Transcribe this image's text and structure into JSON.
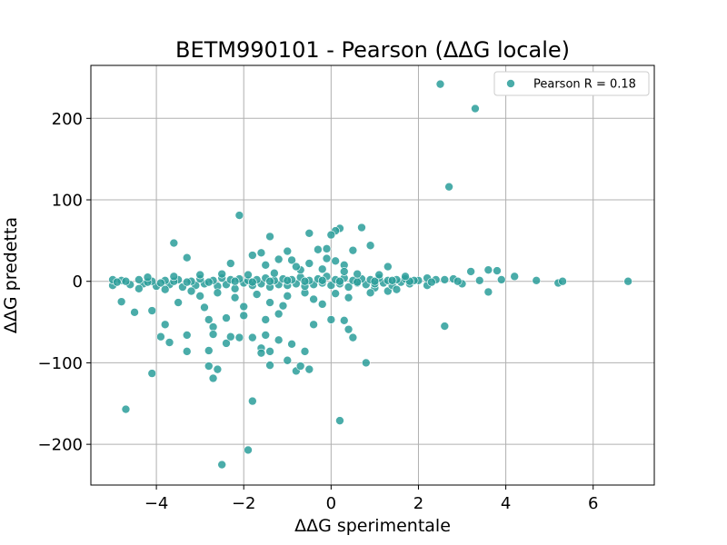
{
  "chart_data": {
    "type": "scatter",
    "title": "BETM990101 - Pearson (ΔΔG locale)",
    "xlabel": "ΔΔG sperimentale",
    "ylabel": "ΔΔG predetta",
    "xlim": [
      -5.5,
      7.4
    ],
    "ylim": [
      -250,
      265
    ],
    "xticks": [
      -4,
      -2,
      0,
      2,
      4,
      6
    ],
    "yticks": [
      -200,
      -100,
      0,
      100,
      200
    ],
    "grid": true,
    "legend": {
      "placement": "top-right",
      "label": "Pearson R = 0.18"
    },
    "marker_color": "#2a9d9a",
    "series": [
      {
        "name": "Pearson R = 0.18",
        "points": [
          [
            2.5,
            242
          ],
          [
            3.3,
            212
          ],
          [
            2.7,
            116
          ],
          [
            -2.1,
            81
          ],
          [
            0.7,
            66
          ],
          [
            0.2,
            65
          ],
          [
            0.1,
            62
          ],
          [
            -0.5,
            59
          ],
          [
            0.0,
            57
          ],
          [
            -1.4,
            55
          ],
          [
            -3.6,
            47
          ],
          [
            0.9,
            44
          ],
          [
            -0.1,
            40
          ],
          [
            0.5,
            38
          ],
          [
            -0.3,
            39
          ],
          [
            -1.0,
            37
          ],
          [
            -3.3,
            29
          ],
          [
            -1.8,
            32
          ],
          [
            -1.6,
            35
          ],
          [
            -1.2,
            27
          ],
          [
            -1.5,
            20
          ],
          [
            -2.3,
            22
          ],
          [
            -0.9,
            26
          ],
          [
            0.3,
            20
          ],
          [
            1.3,
            18
          ],
          [
            3.6,
            14
          ],
          [
            3.8,
            13
          ],
          [
            3.2,
            12
          ],
          [
            4.2,
            6
          ],
          [
            4.7,
            1
          ],
          [
            5.2,
            -2
          ],
          [
            5.3,
            0
          ],
          [
            6.8,
            0
          ],
          [
            -4.8,
            -25
          ],
          [
            -4.5,
            -38
          ],
          [
            -4.1,
            -36
          ],
          [
            -3.8,
            -53
          ],
          [
            -3.9,
            -68
          ],
          [
            -3.7,
            -75
          ],
          [
            -3.3,
            -66
          ],
          [
            -3.3,
            -86
          ],
          [
            -2.8,
            -47
          ],
          [
            -2.7,
            -56
          ],
          [
            -2.7,
            -65
          ],
          [
            -2.8,
            -85
          ],
          [
            -2.8,
            -104
          ],
          [
            -2.7,
            -119
          ],
          [
            -2.6,
            -108
          ],
          [
            -2.4,
            -76
          ],
          [
            -2.4,
            -45
          ],
          [
            -2.3,
            -68
          ],
          [
            -2.1,
            -69
          ],
          [
            -2.0,
            -42
          ],
          [
            -1.8,
            -69
          ],
          [
            -1.6,
            -82
          ],
          [
            -1.6,
            -88
          ],
          [
            -1.5,
            -47
          ],
          [
            -1.5,
            -66
          ],
          [
            -1.4,
            -103
          ],
          [
            -1.4,
            -86
          ],
          [
            -1.2,
            -40
          ],
          [
            -1.2,
            -72
          ],
          [
            -1.0,
            -97
          ],
          [
            -0.9,
            -77
          ],
          [
            -0.8,
            -110
          ],
          [
            -0.7,
            -104
          ],
          [
            -0.6,
            -86
          ],
          [
            -0.5,
            -108
          ],
          [
            -0.4,
            -53
          ],
          [
            0.0,
            -47
          ],
          [
            0.3,
            -48
          ],
          [
            0.4,
            -59
          ],
          [
            0.5,
            -69
          ],
          [
            0.8,
            -100
          ],
          [
            0.2,
            -171
          ],
          [
            -4.7,
            -157
          ],
          [
            -4.1,
            -113
          ],
          [
            -1.8,
            -147
          ],
          [
            -1.9,
            -207
          ],
          [
            -2.5,
            -225
          ],
          [
            2.6,
            -55
          ],
          [
            3.6,
            -13
          ],
          [
            1.3,
            -12
          ],
          [
            -0.2,
            -28
          ],
          [
            0.1,
            -15
          ],
          [
            -0.6,
            -14
          ],
          [
            -1.1,
            -30
          ],
          [
            -2.9,
            -32
          ],
          [
            -3.5,
            -26
          ],
          [
            -3.0,
            -18
          ],
          [
            1.0,
            -8
          ],
          [
            2.2,
            -5
          ],
          [
            3.0,
            -3
          ],
          [
            -5.0,
            -5
          ],
          [
            -4.6,
            -4
          ],
          [
            -4.3,
            -3
          ],
          [
            -4.0,
            -6
          ],
          [
            -3.7,
            -4
          ],
          [
            -3.4,
            -7
          ],
          [
            -3.1,
            -5
          ],
          [
            -2.9,
            -3
          ],
          [
            -2.6,
            -6
          ],
          [
            -2.4,
            -4
          ],
          [
            -2.2,
            -9
          ],
          [
            -2.0,
            -2
          ],
          [
            -1.8,
            -5
          ],
          [
            -1.6,
            -3
          ],
          [
            -1.4,
            -7
          ],
          [
            -1.2,
            -4
          ],
          [
            -1.0,
            -5
          ],
          [
            -0.8,
            -3
          ],
          [
            -0.6,
            -6
          ],
          [
            -0.4,
            -4
          ],
          [
            -0.2,
            -2
          ],
          [
            0.0,
            -5
          ],
          [
            0.2,
            -3
          ],
          [
            0.4,
            -7
          ],
          [
            0.6,
            -2
          ],
          [
            0.8,
            -4
          ],
          [
            1.0,
            -3
          ],
          [
            1.2,
            -2
          ],
          [
            1.4,
            -5
          ],
          [
            1.6,
            -1
          ],
          [
            1.8,
            -3
          ],
          [
            2.0,
            1
          ],
          [
            2.4,
            2
          ],
          [
            2.8,
            3
          ],
          [
            -4.8,
            1
          ],
          [
            -4.4,
            2
          ],
          [
            -4.1,
            0
          ],
          [
            -3.8,
            1
          ],
          [
            -3.5,
            2
          ],
          [
            -3.2,
            0
          ],
          [
            -3.0,
            3
          ],
          [
            -2.7,
            1
          ],
          [
            -2.5,
            4
          ],
          [
            -2.3,
            2
          ],
          [
            -2.1,
            3
          ],
          [
            -1.9,
            1
          ],
          [
            -1.7,
            2
          ],
          [
            -1.5,
            4
          ],
          [
            -1.3,
            1
          ],
          [
            -1.1,
            3
          ],
          [
            -0.9,
            2
          ],
          [
            -0.7,
            5
          ],
          [
            -0.5,
            1
          ],
          [
            -0.3,
            3
          ],
          [
            -0.1,
            6
          ],
          [
            0.1,
            2
          ],
          [
            0.3,
            4
          ],
          [
            0.5,
            1
          ],
          [
            0.7,
            3
          ],
          [
            0.9,
            2
          ],
          [
            1.1,
            4
          ],
          [
            1.3,
            1
          ],
          [
            1.5,
            2
          ],
          [
            1.7,
            3
          ],
          [
            1.9,
            1
          ],
          [
            2.2,
            4
          ],
          [
            2.6,
            2
          ],
          [
            3.4,
            1
          ],
          [
            3.9,
            2
          ],
          [
            -5.0,
            2
          ],
          [
            -4.9,
            -1
          ],
          [
            -4.7,
            0
          ],
          [
            -4.2,
            -1
          ],
          [
            -3.9,
            -2
          ],
          [
            -3.6,
            0
          ],
          [
            -3.3,
            -1
          ],
          [
            -2.8,
            -1
          ],
          [
            -2.2,
            0
          ],
          [
            -1.8,
            -1
          ],
          [
            -1.4,
            0
          ],
          [
            -1.0,
            1
          ],
          [
            -0.6,
            0
          ],
          [
            -0.2,
            1
          ],
          [
            0.2,
            0
          ],
          [
            0.6,
            -1
          ],
          [
            1.0,
            0
          ],
          [
            1.4,
            1
          ],
          [
            1.8,
            0
          ],
          [
            2.3,
            -1
          ],
          [
            2.9,
            0
          ],
          [
            -0.2,
            15
          ],
          [
            0.3,
            12
          ],
          [
            -0.7,
            14
          ],
          [
            -1.3,
            10
          ],
          [
            -1.9,
            8
          ],
          [
            -2.5,
            9
          ],
          [
            -3.0,
            8
          ],
          [
            -3.6,
            6
          ],
          [
            -4.2,
            5
          ],
          [
            0.6,
            9
          ],
          [
            1.1,
            8
          ],
          [
            1.7,
            6
          ],
          [
            -1.0,
            -18
          ],
          [
            -1.7,
            -16
          ],
          [
            -2.2,
            -20
          ],
          [
            -2.6,
            -14
          ],
          [
            -3.2,
            -12
          ],
          [
            -3.8,
            -10
          ],
          [
            -4.4,
            -9
          ],
          [
            0.4,
            -20
          ],
          [
            0.9,
            -14
          ],
          [
            1.5,
            -10
          ],
          [
            -0.4,
            -22
          ],
          [
            -1.4,
            -26
          ],
          [
            -2.0,
            -31
          ],
          [
            -0.1,
            28
          ],
          [
            -0.5,
            22
          ],
          [
            -0.8,
            18
          ],
          [
            0.1,
            25
          ]
        ]
      }
    ]
  }
}
